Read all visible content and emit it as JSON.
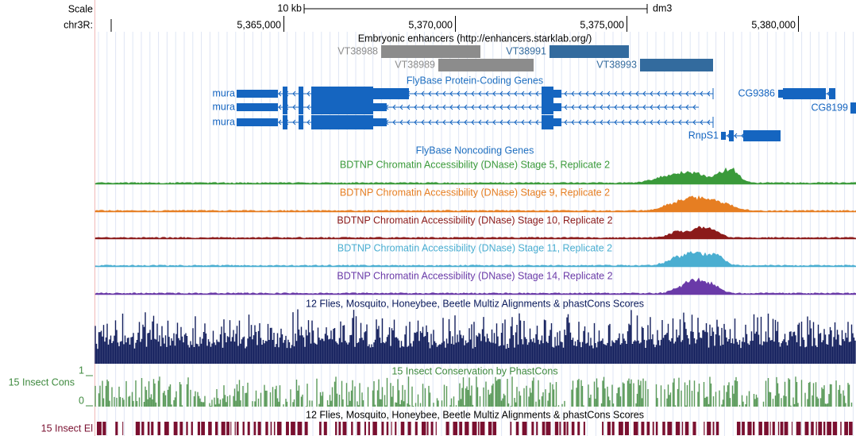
{
  "ruler": {
    "scale_label": "Scale",
    "span": "10 kb",
    "assembly": "dm3",
    "chrom": "chr3R:",
    "positions": [
      "5,365,000",
      "5,370,000",
      "5,375,000",
      "5,380,000"
    ]
  },
  "enhancers": {
    "title": "Embryonic enhancers (http://enhancers.starklab.org/)",
    "items": [
      "VT38988",
      "VT38989",
      "VT38991",
      "VT38993"
    ]
  },
  "coding_genes": {
    "title": "FlyBase Protein-Coding Genes",
    "genes": [
      "mura",
      "mura",
      "mura",
      "CG9386",
      "CG8199",
      "RnpS1"
    ]
  },
  "noncoding_genes": {
    "title": "FlyBase Noncoding Genes"
  },
  "dnase_tracks": [
    "BDTNP Chromatin Accessibility (DNase) Stage 5, Replicate 2",
    "BDTNP Chromatin Accessibility (DNase) Stage 9, Replicate 2",
    "BDTNP Chromatin Accessibility (DNase) Stage 10, Replicate 2",
    "BDTNP Chromatin Accessibility (DNase) Stage 11, Replicate 2",
    "BDTNP Chromatin Accessibility (DNase) Stage 14, Replicate 2"
  ],
  "multiz": {
    "title": "12 Flies, Mosquito, Honeybee, Beetle Multiz Alignments & phastCons Scores"
  },
  "phastcons": {
    "title": "15 Insect Conservation by PhastCons",
    "side_label": "15 Insect Cons",
    "max_label": "1",
    "min_label": "0"
  },
  "elements": {
    "title": "12 Flies, Mosquito, Honeybee, Beetle Multiz Alignments & phastCons Scores",
    "side_label": "15 Insect El"
  }
}
